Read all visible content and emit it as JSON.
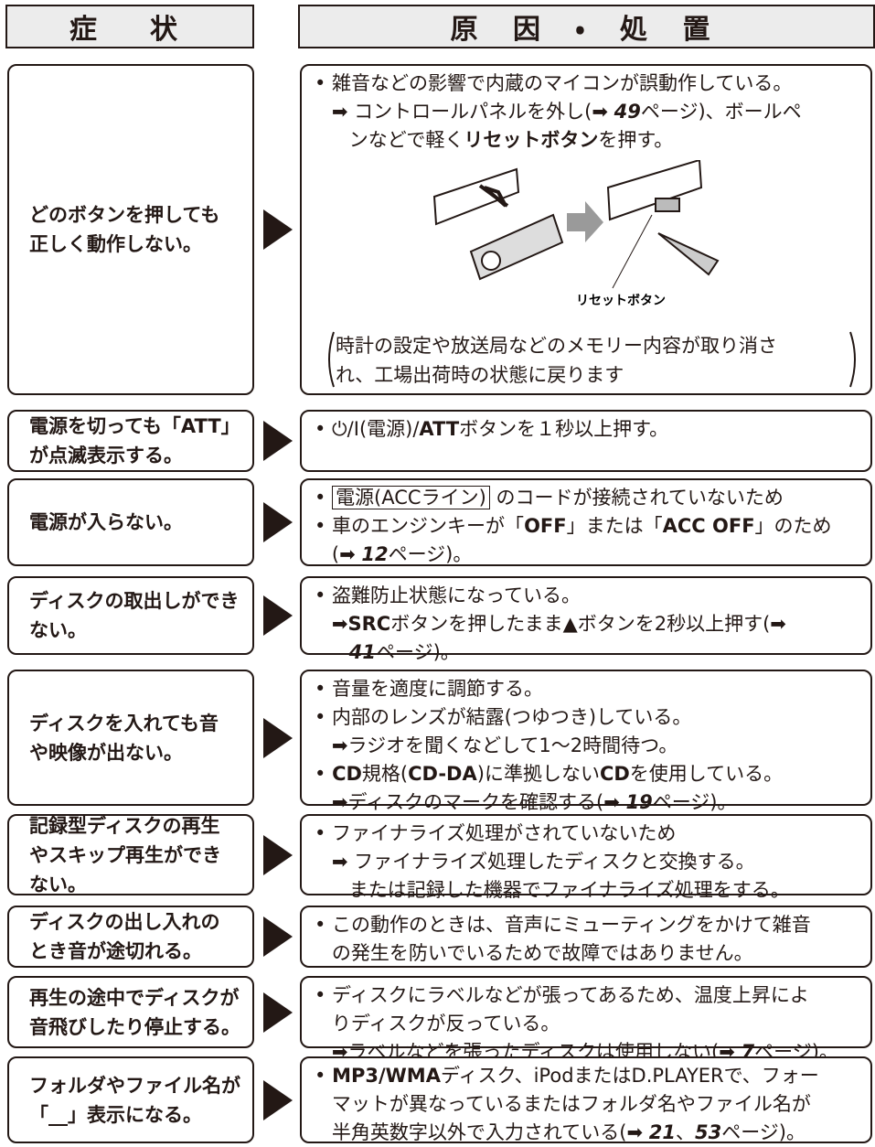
{
  "header": {
    "symptom": "症　状",
    "cause": "原 因 ・ 処 置"
  },
  "rows": [
    {
      "symptom": [
        "どのボタンを押しても",
        "正しく動作しない。"
      ],
      "cause": [
        [
          "• 雑音などの影響で内蔵のマイコンが誤動作している。"
        ],
        [
          "➡ コントロールパネルを外し(➡ ",
          {
            "bold": "49"
          },
          "ページ)、ボールペ"
        ],
        [
          "ンなどで軽く",
          {
            "bold": "リセットボタン"
          },
          "を押す。"
        ]
      ],
      "figure_label": "リセットボタン",
      "note": [
        "時計の設定や放送局などのメモリー内容が取り消さ",
        "れ、工場出荷時の状態に戻ります"
      ]
    },
    {
      "symptom": [
        "電源を切っても「ATT」",
        "が点滅表示する。"
      ],
      "cause": [
        [
          "• ⏻/I(電源)/",
          {
            "bold": "ATT"
          },
          "ボタンを１秒以上押す。"
        ]
      ]
    },
    {
      "symptom": [
        "電源が入らない。"
      ],
      "cause": [
        [
          "• ",
          {
            "box": "電源(ACCライン)"
          },
          " のコードが接続されていないため"
        ],
        [
          "• 車のエンジンキーが「",
          {
            "bold": "OFF"
          },
          "」または「",
          {
            "bold": "ACC OFF"
          },
          "」のため"
        ],
        [
          "(➡ ",
          {
            "bold": "12"
          },
          "ページ)。"
        ]
      ]
    },
    {
      "symptom": [
        "ディスクの取出しができ",
        "ない。"
      ],
      "cause": [
        [
          "• 盗難防止状態になっている。"
        ],
        [
          "➡",
          {
            "bold": "SRC"
          },
          "ボタンを押したまま▲ボタンを2秒以上押す(➡"
        ],
        [
          {
            "bold": "41"
          },
          "ページ)。"
        ]
      ]
    },
    {
      "symptom": [
        "ディスクを入れても音",
        "や映像が出ない。"
      ],
      "cause": [
        [
          "• 音量を適度に調節する。"
        ],
        [
          "• 内部のレンズが結露(つゆつき)している。"
        ],
        [
          "➡ラジオを聞くなどして1〜2時間待つ。"
        ],
        [
          "• ",
          {
            "bold": "CD"
          },
          "規格(",
          {
            "bold": "CD-DA"
          },
          ")に準拠しない",
          {
            "bold": "CD"
          },
          "を使用している。"
        ],
        [
          "➡ディスクのマークを確認する(➡ ",
          {
            "bold": "19"
          },
          "ページ)。"
        ]
      ]
    },
    {
      "symptom": [
        "記録型ディスクの再生",
        "やスキップ再生ができ",
        "ない。"
      ],
      "cause": [
        [
          "• ファイナライズ処理がされていないため"
        ],
        [
          "➡ ファイナライズ処理したディスクと交換する。"
        ],
        [
          "または記録した機器でファイナライズ処理をする。"
        ]
      ]
    },
    {
      "symptom": [
        "ディスクの出し入れの",
        "とき音が途切れる。"
      ],
      "cause": [
        [
          "• この動作のときは、音声にミューティングをかけて雑音"
        ],
        [
          "の発生を防いでいるためで故障ではありません。"
        ]
      ]
    },
    {
      "symptom": [
        "再生の途中でディスクが",
        "音飛びしたり停止する。"
      ],
      "cause": [
        [
          "• ディスクにラベルなどが張ってあるため、温度上昇によ"
        ],
        [
          "りディスクが反っている。"
        ],
        [
          "➡ラベルなどを張ったディスクは使用しない(➡ ",
          {
            "bold": "7"
          },
          "ページ)。"
        ]
      ]
    },
    {
      "symptom": [
        "フォルダやファイル名が",
        "「__」表示になる。"
      ],
      "cause": [
        [
          "• ",
          {
            "bold": "MP3/WMA"
          },
          "ディスク、iPodまたはD.PLAYERで、フォー"
        ],
        [
          "マットが異なっているまたはフォルダ名やファイル名が"
        ],
        [
          "半角英数字以外で入力されている(➡ ",
          {
            "bold": "21"
          },
          "、",
          {
            "bold": "53"
          },
          "ページ)。"
        ]
      ]
    }
  ]
}
